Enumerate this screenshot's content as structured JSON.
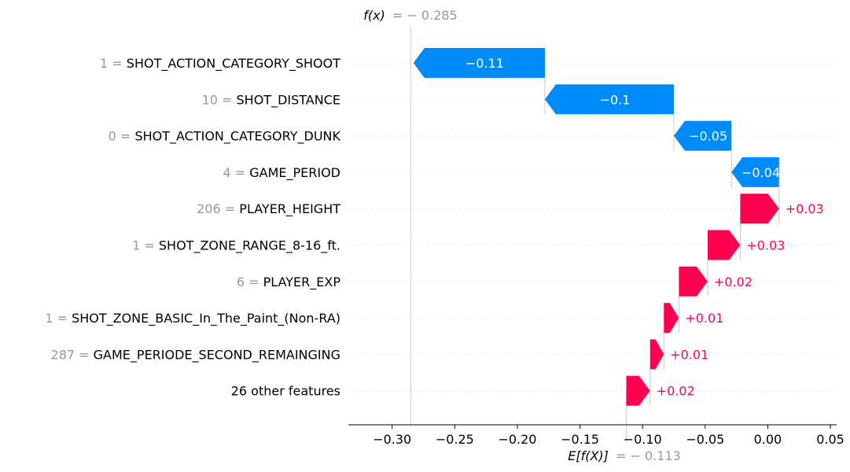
{
  "chart_data": {
    "type": "waterfall",
    "fx_label": "f(x)",
    "fx_value": "= − 0.285",
    "efx_label": "E[f(X)]",
    "efx_value": "= − 0.113",
    "base_value": -0.113,
    "output_value": -0.285,
    "xlim": [
      -0.335,
      0.055
    ],
    "ticks": [
      -0.3,
      -0.25,
      -0.2,
      -0.15,
      -0.1,
      -0.05,
      0.0,
      0.05
    ],
    "tick_labels": [
      "−0.30",
      "−0.25",
      "−0.20",
      "−0.15",
      "−0.10",
      "−0.05",
      "0.00",
      "0.05"
    ],
    "colors": {
      "positive": "#ff0051",
      "negative": "#008bfb",
      "muted": "#999999"
    },
    "features": [
      {
        "value": "1",
        "name": "SHOT_ACTION_CATEGORY_SHOOT",
        "shap": -0.105,
        "label": "−0.11"
      },
      {
        "value": "10",
        "name": "SHOT_DISTANCE",
        "shap": -0.103,
        "label": "−0.1"
      },
      {
        "value": "0",
        "name": "SHOT_ACTION_CATEGORY_DUNK",
        "shap": -0.046,
        "label": "−0.05"
      },
      {
        "value": "4",
        "name": "GAME_PERIOD",
        "shap": -0.038,
        "label": "−0.04"
      },
      {
        "value": "206",
        "name": "PLAYER_HEIGHT",
        "shap": 0.031,
        "label": "+0.03"
      },
      {
        "value": "1",
        "name": "SHOT_ZONE_RANGE_8-16_ft.",
        "shap": 0.026,
        "label": "+0.03"
      },
      {
        "value": "6",
        "name": "PLAYER_EXP",
        "shap": 0.023,
        "label": "+0.02"
      },
      {
        "value": "1",
        "name": "SHOT_ZONE_BASIC_In_The_Paint_(Non-RA)",
        "shap": 0.012,
        "label": "+0.01"
      },
      {
        "value": "287",
        "name": "GAME_PERIODE_SECOND_REMAINGING",
        "shap": 0.011,
        "label": "+0.01"
      },
      {
        "value": "",
        "name": "26 other features",
        "shap": 0.019,
        "label": "+0.02"
      }
    ]
  }
}
